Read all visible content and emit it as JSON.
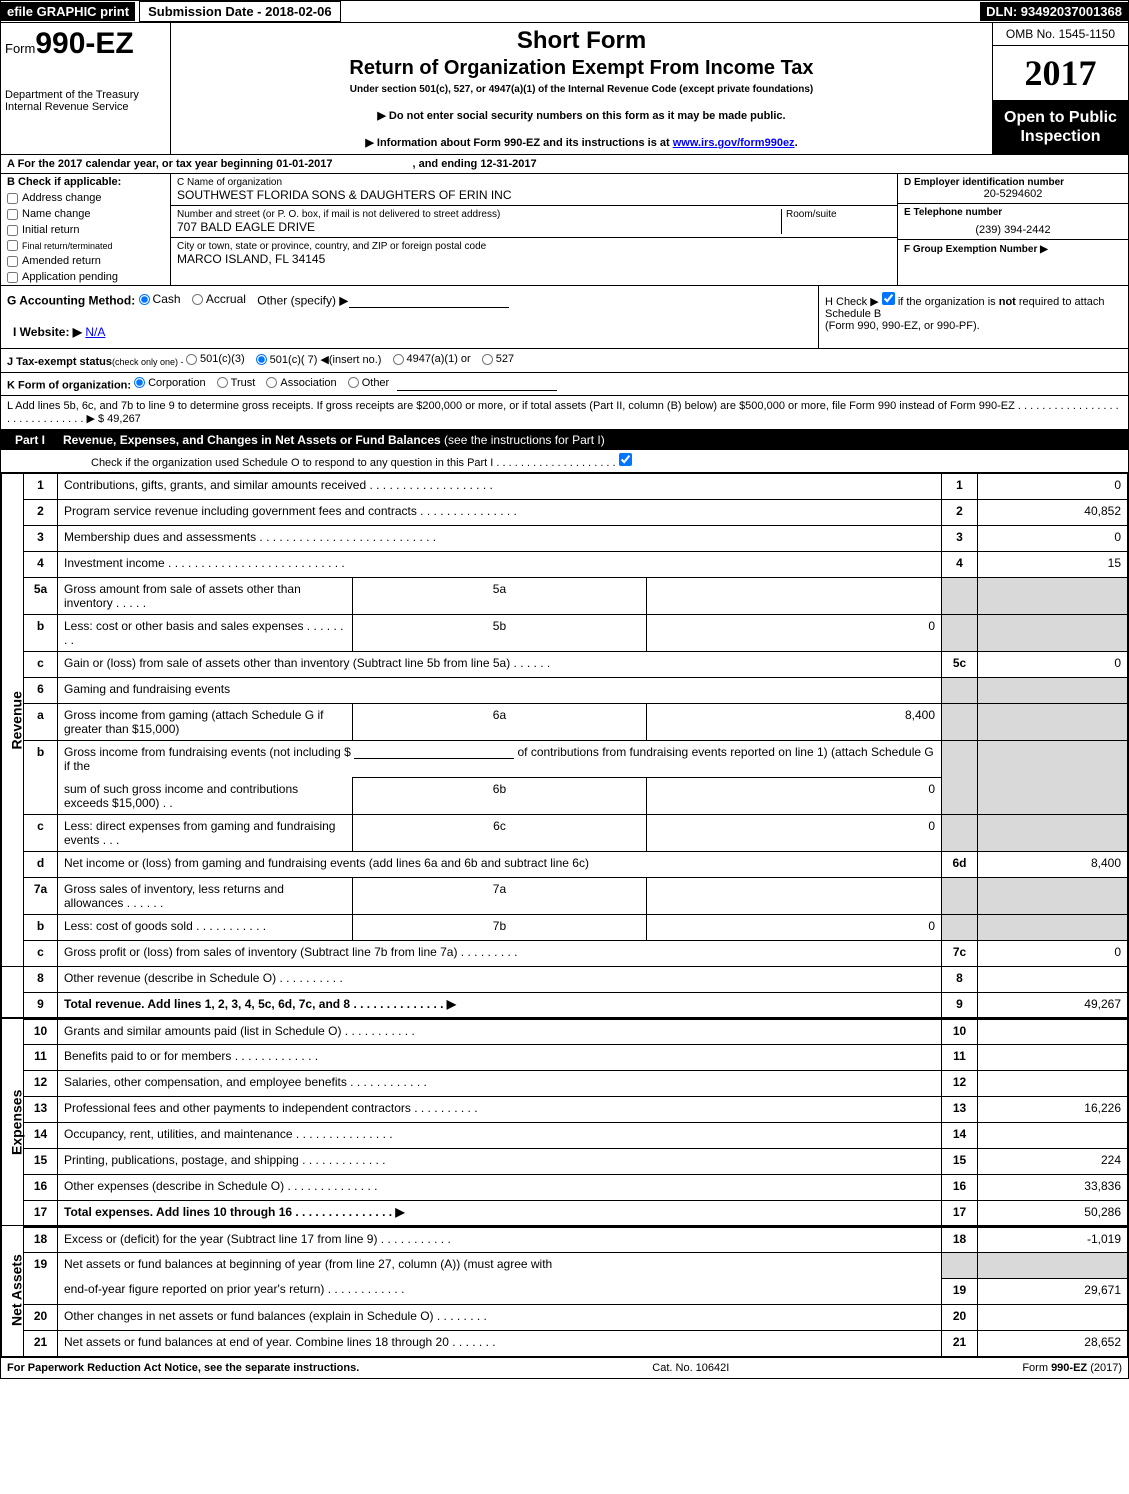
{
  "topbar": {
    "efile": "efile GRAPHIC print",
    "subdate_label": "Submission Date - 2018-02-06",
    "dln": "DLN: 93492037001368"
  },
  "header": {
    "form_prefix": "Form",
    "form_no": "990-EZ",
    "dept1": "Department of the Treasury",
    "dept2": "Internal Revenue Service",
    "title1": "Short Form",
    "title2": "Return of Organization Exempt From Income Tax",
    "sub1": "Under section 501(c), 527, or 4947(a)(1) of the Internal Revenue Code (except private foundations)",
    "sub2": "▶ Do not enter social security numbers on this form as it may be made public.",
    "sub3_pre": "▶ Information about Form 990-EZ and its instructions is at ",
    "sub3_link": "www.irs.gov/form990ez",
    "sub3_post": ".",
    "omb": "OMB No. 1545-1150",
    "year": "2017",
    "open": "Open to Public Inspection"
  },
  "rowA": {
    "text_pre": "A  For the 2017 calendar year, or tax year beginning ",
    "begin": "01-01-2017",
    "mid": ", and ending ",
    "end": "12-31-2017"
  },
  "boxB": {
    "label": "B  Check if applicable:",
    "items": [
      "Address change",
      "Name change",
      "Initial return",
      "Final return/terminated",
      "Amended return",
      "Application pending"
    ]
  },
  "boxC": {
    "c_label": "C Name of organization",
    "org": "SOUTHWEST FLORIDA SONS & DAUGHTERS OF ERIN INC",
    "addr_label": "Number and street (or P. O. box, if mail is not delivered to street address)",
    "room": "Room/suite",
    "addr": "707 BALD EAGLE DRIVE",
    "city_label": "City or town, state or province, country, and ZIP or foreign postal code",
    "city": "MARCO ISLAND, FL  34145"
  },
  "rcol": {
    "d_label": "D Employer identification number",
    "d_val": "20-5294602",
    "e_label": "E Telephone number",
    "e_val": "(239) 394-2442",
    "f_label": "F Group Exemption Number   ▶"
  },
  "rowG": {
    "label": "G Accounting Method:",
    "cash": "Cash",
    "accrual": "Accrual",
    "other": "Other (specify) ▶",
    "h1": "H  Check ▶ ",
    "h2": " if the organization is ",
    "h_not": "not",
    "h3": " required to attach Schedule B",
    "h4": "(Form 990, 990-EZ, or 990-PF)."
  },
  "rowI": {
    "label": "I Website: ▶",
    "val": "N/A"
  },
  "rowJ": {
    "label": "J Tax-exempt status",
    "tail": "(check only one) - ",
    "o1": "501(c)(3)",
    "o2": "501(c)( 7) ◀(insert no.)",
    "o3": "4947(a)(1) or",
    "o4": "527"
  },
  "rowK": {
    "label": "K Form of organization:",
    "o1": "Corporation",
    "o2": "Trust",
    "o3": "Association",
    "o4": "Other"
  },
  "rowL": {
    "text": "L Add lines 5b, 6c, and 7b to line 9 to determine gross receipts. If gross receipts are $200,000 or more, or if total assets (Part II, column (B) below) are $500,000 or more, file Form 990 instead of Form 990-EZ  .  .  .  .  .  .  .  .  .  .  .  .  .  .  .  .  .  .  .  .  .  .  .  .  .  .  .  .  .  .  ▶ $ ",
    "amt": "49,267"
  },
  "part1": {
    "label": "Part I",
    "title": "Revenue, Expenses, and Changes in Net Assets or Fund Balances ",
    "tail": "(see the instructions for Part I)",
    "check": "Check if the organization used Schedule O to respond to any question in this Part I .  .  .  .  .  .  .  .  .  .  .  .  .  .  .  .  .  .  .  .  "
  },
  "sections": {
    "rev": "Revenue",
    "exp": "Expenses",
    "net": "Net Assets"
  },
  "lines": {
    "l1": {
      "n": "1",
      "d": "Contributions, gifts, grants, and similar amounts received  .   .   .   .   .   .   .   .   .   .   .   .   .   .   .   .   .   .   .",
      "nl": "1",
      "nv": "0"
    },
    "l2": {
      "n": "2",
      "d": "Program service revenue including government fees and contracts  .   .   .   .   .   .   .   .   .   .   .   .   .   .   .",
      "nl": "2",
      "nv": "40,852"
    },
    "l3": {
      "n": "3",
      "d": "Membership dues and assessments  .   .   .   .   .   .   .   .   .   .   .   .   .   .   .   .   .   .   .   .   .   .   .   .   .   .   .",
      "nl": "3",
      "nv": "0"
    },
    "l4": {
      "n": "4",
      "d": "Investment income  .   .   .   .   .   .   .   .   .   .   .   .   .   .   .   .   .   .   .   .   .   .   .   .   .   .   .",
      "nl": "4",
      "nv": "15"
    },
    "l5a": {
      "n": "5a",
      "d": "Gross amount from sale of assets other than inventory  .   .   .   .   .",
      "ml": "5a",
      "mv": ""
    },
    "l5b": {
      "n": "b",
      "d": "Less: cost or other basis and sales expenses  .   .   .   .   .   .   .   .",
      "ml": "5b",
      "mv": "0"
    },
    "l5c": {
      "n": "c",
      "d": "Gain or (loss) from sale of assets other than inventory (Subtract line 5b from line 5a)          .     .     .     .     .     .",
      "nl": "5c",
      "nv": "0"
    },
    "l6": {
      "n": "6",
      "d": "Gaming and fundraising events"
    },
    "l6a": {
      "n": "a",
      "d": "Gross income from gaming (attach Schedule G if greater than $15,000)",
      "ml": "6a",
      "mv": "8,400"
    },
    "l6b": {
      "n": "b",
      "d1": "Gross income from fundraising events (not including $ ",
      "d2": " of contributions from fundraising events reported on line 1) (attach Schedule G if the",
      "d3": "sum of such gross income and contributions exceeds $15,000)         .     .",
      "ml": "6b",
      "mv": "0"
    },
    "l6c": {
      "n": "c",
      "d": "Less: direct expenses from gaming and fundraising events          .     .     .",
      "ml": "6c",
      "mv": "0"
    },
    "l6d": {
      "n": "d",
      "d": "Net income or (loss) from gaming and fundraising events (add lines 6a and 6b and subtract line 6c)",
      "nl": "6d",
      "nv": "8,400"
    },
    "l7a": {
      "n": "7a",
      "d": "Gross sales of inventory, less returns and allowances          .     .     .     .     .     .",
      "ml": "7a",
      "mv": ""
    },
    "l7b": {
      "n": "b",
      "d": "Less: cost of goods sold                    .     .     .     .     .     .     .     .     .     .     .",
      "ml": "7b",
      "mv": "0"
    },
    "l7c": {
      "n": "c",
      "d": "Gross profit or (loss) from sales of inventory (Subtract line 7b from line 7a)          .     .     .     .     .     .     .     .     .",
      "nl": "7c",
      "nv": "0"
    },
    "l8": {
      "n": "8",
      "d": "Other revenue (describe in Schedule O)                    .     .     .     .     .     .     .     .     .     .",
      "nl": "8",
      "nv": ""
    },
    "l9": {
      "n": "9",
      "d": "Total revenue. Add lines 1, 2, 3, 4, 5c, 6d, 7c, and 8          .     .     .     .     .     .     .     .     .     .     .     .     .     .   ▶",
      "nl": "9",
      "nv": "49,267"
    },
    "l10": {
      "n": "10",
      "d": "Grants and similar amounts paid (list in Schedule O)              .     .     .     .     .     .     .     .     .     .     .",
      "nl": "10",
      "nv": ""
    },
    "l11": {
      "n": "11",
      "d": "Benefits paid to or for members                    .     .     .     .     .     .     .     .     .     .     .     .     .",
      "nl": "11",
      "nv": ""
    },
    "l12": {
      "n": "12",
      "d": "Salaries, other compensation, and employee benefits          .     .     .     .     .     .     .     .     .     .     .     .",
      "nl": "12",
      "nv": ""
    },
    "l13": {
      "n": "13",
      "d": "Professional fees and other payments to independent contractors          .     .     .     .     .     .     .     .     .     .",
      "nl": "13",
      "nv": "16,226"
    },
    "l14": {
      "n": "14",
      "d": "Occupancy, rent, utilities, and maintenance          .     .     .     .     .     .     .     .     .     .     .     .     .     .     .",
      "nl": "14",
      "nv": ""
    },
    "l15": {
      "n": "15",
      "d": "Printing, publications, postage, and shipping               .     .     .     .     .     .     .     .     .     .     .     .     .",
      "nl": "15",
      "nv": "224"
    },
    "l16": {
      "n": "16",
      "d": "Other expenses (describe in Schedule O)               .     .     .     .     .     .     .     .     .     .     .     .     .     .",
      "nl": "16",
      "nv": "33,836"
    },
    "l17": {
      "n": "17",
      "d": "Total expenses. Add lines 10 through 16               .     .     .     .     .     .     .     .     .     .     .     .     .     .     .   ▶",
      "nl": "17",
      "nv": "50,286"
    },
    "l18": {
      "n": "18",
      "d": "Excess or (deficit) for the year (Subtract line 17 from line 9)               .     .     .     .     .     .     .     .     .     .     .",
      "nl": "18",
      "nv": "-1,019"
    },
    "l19": {
      "n": "19",
      "d1": "Net assets or fund balances at beginning of year (from line 27, column (A)) (must agree with",
      "d2": "end-of-year figure reported on prior year's return)               .     .     .     .     .     .     .     .     .     .     .     .",
      "nl": "19",
      "nv": "29,671"
    },
    "l20": {
      "n": "20",
      "d": "Other changes in net assets or fund balances (explain in Schedule O)               .     .     .     .     .     .     .     .",
      "nl": "20",
      "nv": ""
    },
    "l21": {
      "n": "21",
      "d": "Net assets or fund balances at end of year. Combine lines 18 through 20               .     .     .     .     .     .     .",
      "nl": "21",
      "nv": "28,652"
    }
  },
  "footer": {
    "left": "For Paperwork Reduction Act Notice, see the separate instructions.",
    "mid": "Cat. No. 10642I",
    "right": "Form 990-EZ (2017)"
  }
}
